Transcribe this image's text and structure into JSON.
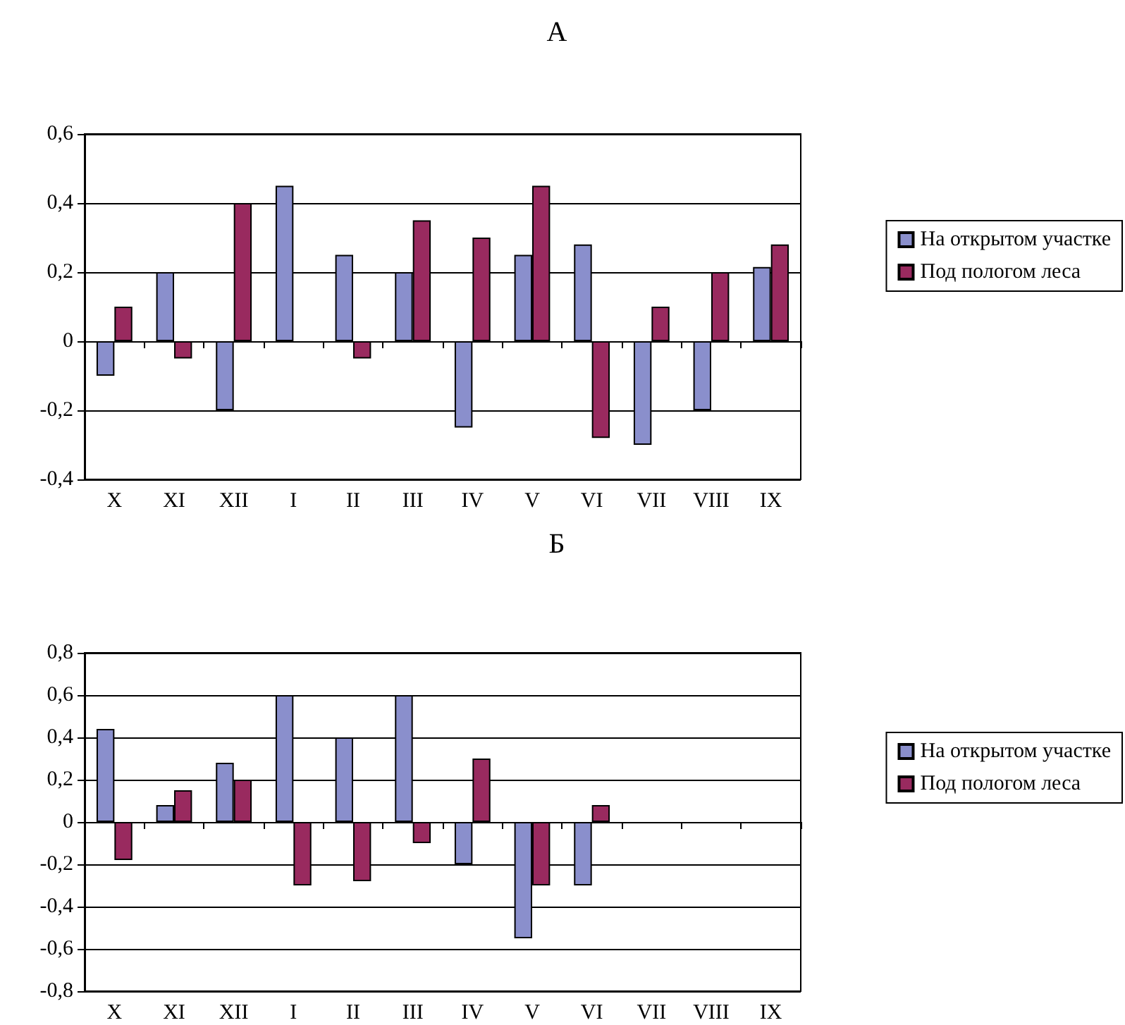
{
  "chart_data": [
    {
      "type": "bar",
      "title": "А",
      "categories": [
        "X",
        "XI",
        "XII",
        "I",
        "II",
        "III",
        "IV",
        "V",
        "VI",
        "VII",
        "VIII",
        "IX"
      ],
      "series": [
        {
          "name": "На открытом участке",
          "color": "#8a8fcc",
          "values": [
            -0.1,
            0.2,
            -0.2,
            0.45,
            0.25,
            0.2,
            -0.25,
            0.25,
            0.28,
            -0.3,
            -0.2,
            0.215
          ]
        },
        {
          "name": "Под пологом леса",
          "color": "#992a5f",
          "values": [
            0.1,
            -0.05,
            0.4,
            null,
            -0.05,
            0.35,
            0.3,
            0.45,
            -0.28,
            0.1,
            0.2,
            0.28
          ]
        }
      ],
      "ylim": [
        -0.4,
        0.6
      ],
      "yticks": [
        {
          "value": -0.4,
          "label": "-0,4"
        },
        {
          "value": -0.2,
          "label": "-0,2"
        },
        {
          "value": 0,
          "label": "0"
        },
        {
          "value": 0.2,
          "label": "0,2"
        },
        {
          "value": 0.4,
          "label": "0,4"
        },
        {
          "value": 0.6,
          "label": "0,6"
        }
      ],
      "grid": "y",
      "legend": "right"
    },
    {
      "type": "bar",
      "title": "Б",
      "categories": [
        "X",
        "XI",
        "XII",
        "I",
        "II",
        "III",
        "IV",
        "V",
        "VI",
        "VII",
        "VIII",
        "IX"
      ],
      "series": [
        {
          "name": "На открытом участке",
          "color": "#8a8fcc",
          "values": [
            0.44,
            0.08,
            0.28,
            0.6,
            0.4,
            0.6,
            -0.2,
            -0.55,
            -0.3,
            null,
            null,
            null
          ]
        },
        {
          "name": "Под пологом леса",
          "color": "#992a5f",
          "values": [
            -0.18,
            0.15,
            0.2,
            -0.3,
            -0.28,
            -0.1,
            0.3,
            -0.3,
            0.08,
            null,
            null,
            null
          ]
        }
      ],
      "ylim": [
        -0.8,
        0.8
      ],
      "yticks": [
        {
          "value": -0.8,
          "label": "-0,8"
        },
        {
          "value": -0.6,
          "label": "-0,6"
        },
        {
          "value": -0.4,
          "label": "-0,4"
        },
        {
          "value": -0.2,
          "label": "-0,2"
        },
        {
          "value": 0,
          "label": "0"
        },
        {
          "value": 0.2,
          "label": "0,2"
        },
        {
          "value": 0.4,
          "label": "0,4"
        },
        {
          "value": 0.6,
          "label": "0,6"
        },
        {
          "value": 0.8,
          "label": "0,8"
        }
      ],
      "grid": "y",
      "legend": "right"
    }
  ]
}
